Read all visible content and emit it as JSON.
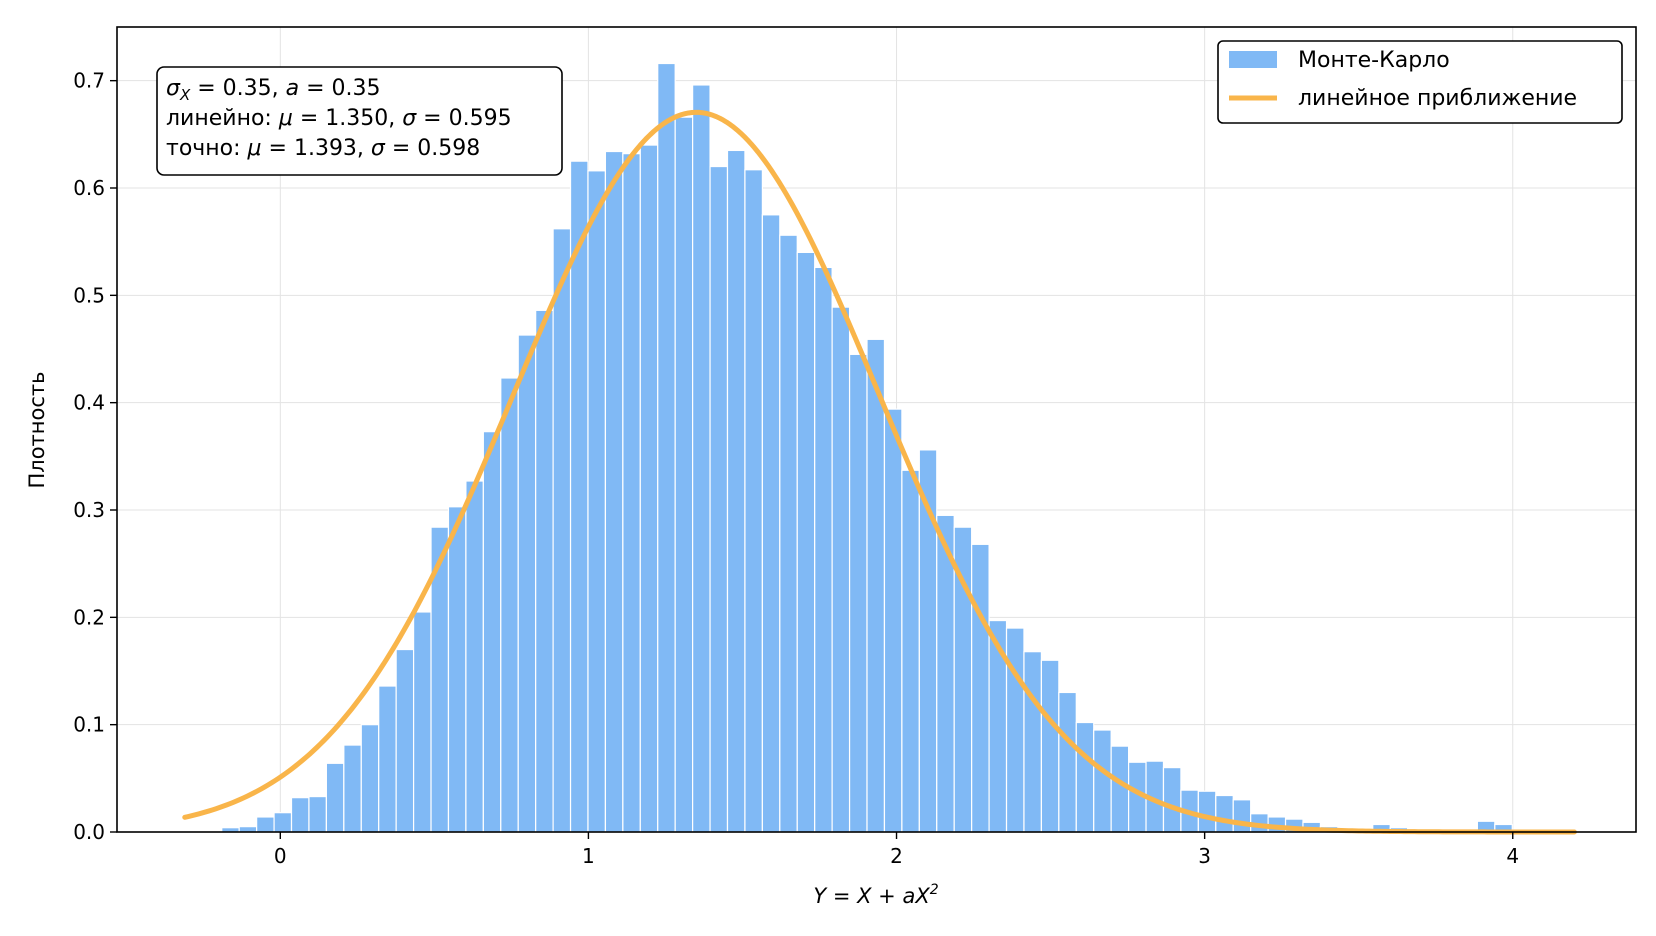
{
  "chart_data": {
    "type": "bar",
    "xlabel": "Y = X + aX²",
    "ylabel": "Плотность",
    "xlim": [
      -0.53,
      4.4
    ],
    "ylim": [
      0,
      0.75
    ],
    "xticks": [
      0,
      1,
      2,
      3,
      4
    ],
    "yticks": [
      0.0,
      0.1,
      0.2,
      0.3,
      0.4,
      0.5,
      0.6,
      0.7
    ],
    "grid": true,
    "legend_position": "top-right",
    "colors": {
      "histogram": "#80b9f5",
      "curve": "#f9b54a"
    },
    "histogram": {
      "name": "Монте-Карло",
      "bin_width": 0.0566,
      "bin_start": -0.19,
      "values": [
        0.004,
        0.005,
        0.014,
        0.018,
        0.032,
        0.033,
        0.064,
        0.081,
        0.1,
        0.136,
        0.17,
        0.205,
        0.284,
        0.303,
        0.327,
        0.373,
        0.423,
        0.463,
        0.486,
        0.562,
        0.625,
        0.616,
        0.634,
        0.632,
        0.64,
        0.716,
        0.666,
        0.696,
        0.62,
        0.635,
        0.617,
        0.575,
        0.556,
        0.54,
        0.526,
        0.489,
        0.445,
        0.459,
        0.394,
        0.337,
        0.356,
        0.295,
        0.284,
        0.268,
        0.197,
        0.19,
        0.168,
        0.16,
        0.13,
        0.102,
        0.095,
        0.08,
        0.065,
        0.066,
        0.06,
        0.039,
        0.038,
        0.034,
        0.03,
        0.017,
        0.014,
        0.012,
        0.009,
        0.005,
        0.003,
        0.003,
        0.007,
        0.004,
        0.002,
        0.001,
        0.001,
        0.001,
        0.01,
        0.007,
        0.002,
        0.001,
        0.001,
        0.001
      ]
    },
    "curve": {
      "name": "линейное приближение",
      "kind": "normal_pdf",
      "mu": 1.35,
      "sigma": 0.595,
      "x_range": [
        -0.31,
        4.2
      ]
    },
    "annotation": {
      "line1": "σX = 0.35,  a = 0.35",
      "line2": "линейно: μ = 1.350,  σ = 0.595",
      "line3": "точно: μ = 1.393,  σ = 0.598"
    }
  }
}
